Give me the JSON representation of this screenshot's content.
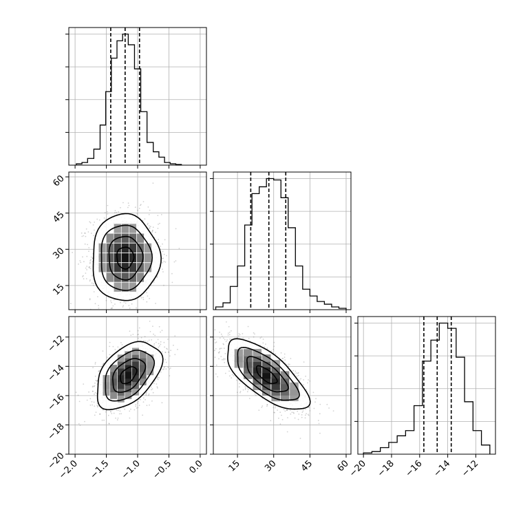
{
  "chart_data": {
    "type": "corner",
    "parameters": [
      {
        "key": "p0",
        "xlim": [
          -2.1,
          0.1
        ],
        "ticks": [
          -2.0,
          -1.5,
          -1.0,
          -0.5,
          0.0
        ],
        "tick_labels": [
          "−2.0",
          "−1.5",
          "−1.0",
          "−0.5",
          "0.0"
        ]
      },
      {
        "key": "p1",
        "xlim": [
          5,
          62
        ],
        "ticks": [
          15,
          30,
          45,
          60
        ],
        "tick_labels": [
          "15",
          "30",
          "45",
          "60"
        ]
      },
      {
        "key": "p2",
        "xlim": [
          -20.4,
          -10.6
        ],
        "ticks": [
          -20,
          -18,
          -16,
          -14,
          -12
        ],
        "tick_labels": [
          "−20",
          "−18",
          "−16",
          "−14",
          "−12"
        ]
      }
    ],
    "row_axes": [
      null,
      {
        "ylim": [
          5,
          62
        ],
        "ticks": [
          15,
          30,
          45,
          60
        ],
        "tick_labels": [
          "15",
          "30",
          "45",
          "60"
        ]
      },
      {
        "ylim": [
          -20,
          -10.6
        ],
        "ticks": [
          -20,
          -18,
          -16,
          -14,
          -12
        ],
        "tick_labels": [
          "−20",
          "−18",
          "−16",
          "−14",
          "−12"
        ]
      }
    ],
    "histograms": [
      {
        "param": "p0",
        "bin_edges": [
          -1.98,
          -1.89,
          -1.8,
          -1.7,
          -1.6,
          -1.51,
          -1.42,
          -1.33,
          -1.24,
          -1.15,
          -1.05,
          -0.95,
          -0.85,
          -0.75,
          -0.66,
          -0.57,
          -0.48,
          -0.39,
          -0.3
        ],
        "counts": [
          0.01,
          0.02,
          0.05,
          0.12,
          0.3,
          0.55,
          0.8,
          0.93,
          0.98,
          0.9,
          0.72,
          0.4,
          0.17,
          0.1,
          0.06,
          0.02,
          0.01,
          0.005
        ],
        "quantiles": [
          -1.43,
          -1.2,
          -0.97
        ]
      },
      {
        "param": "p1",
        "bin_edges": [
          6,
          9,
          12,
          15,
          18,
          21,
          24,
          27,
          30,
          33,
          36,
          39,
          42,
          45,
          48,
          51,
          54,
          57,
          60
        ],
        "counts": [
          0.02,
          0.05,
          0.17,
          0.32,
          0.62,
          0.85,
          0.9,
          0.96,
          0.95,
          0.82,
          0.6,
          0.32,
          0.15,
          0.1,
          0.06,
          0.04,
          0.02,
          0.01
        ],
        "quantiles": [
          20.5,
          28.0,
          35.0
        ]
      },
      {
        "param": "p2",
        "bin_edges": [
          -20.0,
          -19.4,
          -18.8,
          -18.2,
          -17.6,
          -17.0,
          -16.4,
          -15.8,
          -15.2,
          -14.6,
          -14.0,
          -13.4,
          -12.8,
          -12.2,
          -11.6,
          -11.0
        ],
        "counts": [
          0.01,
          0.02,
          0.05,
          0.09,
          0.14,
          0.18,
          0.37,
          0.71,
          0.87,
          1.0,
          0.96,
          0.74,
          0.4,
          0.18,
          0.07
        ],
        "quantiles": [
          -15.7,
          -14.75,
          -13.75
        ]
      }
    ],
    "joint_panels": [
      {
        "x": "p0",
        "y": "p1",
        "mean": [
          -1.2,
          26.5
        ],
        "sd": [
          0.27,
          9.0
        ],
        "corr": 0.0,
        "contour_radii_sd": [
          0.5,
          1.0,
          1.5,
          2.0
        ],
        "density_grid_bins": 9
      },
      {
        "x": "p0",
        "y": "p2",
        "mean": [
          -1.15,
          -14.6
        ],
        "sd": [
          0.26,
          1.15
        ],
        "corr": 0.45,
        "contour_radii_sd": [
          0.5,
          1.0,
          1.5,
          2.0
        ],
        "density_grid_bins": 9
      },
      {
        "x": "p1",
        "y": "p2",
        "mean": [
          27.0,
          -14.6
        ],
        "sd": [
          8.5,
          1.2
        ],
        "corr": -0.7,
        "contour_radii_sd": [
          0.5,
          1.0,
          1.5,
          2.0
        ],
        "density_grid_bins": 9
      }
    ],
    "scatter_points_per_panel": 1400,
    "grid": true,
    "quantile_line_style": "dashed"
  }
}
